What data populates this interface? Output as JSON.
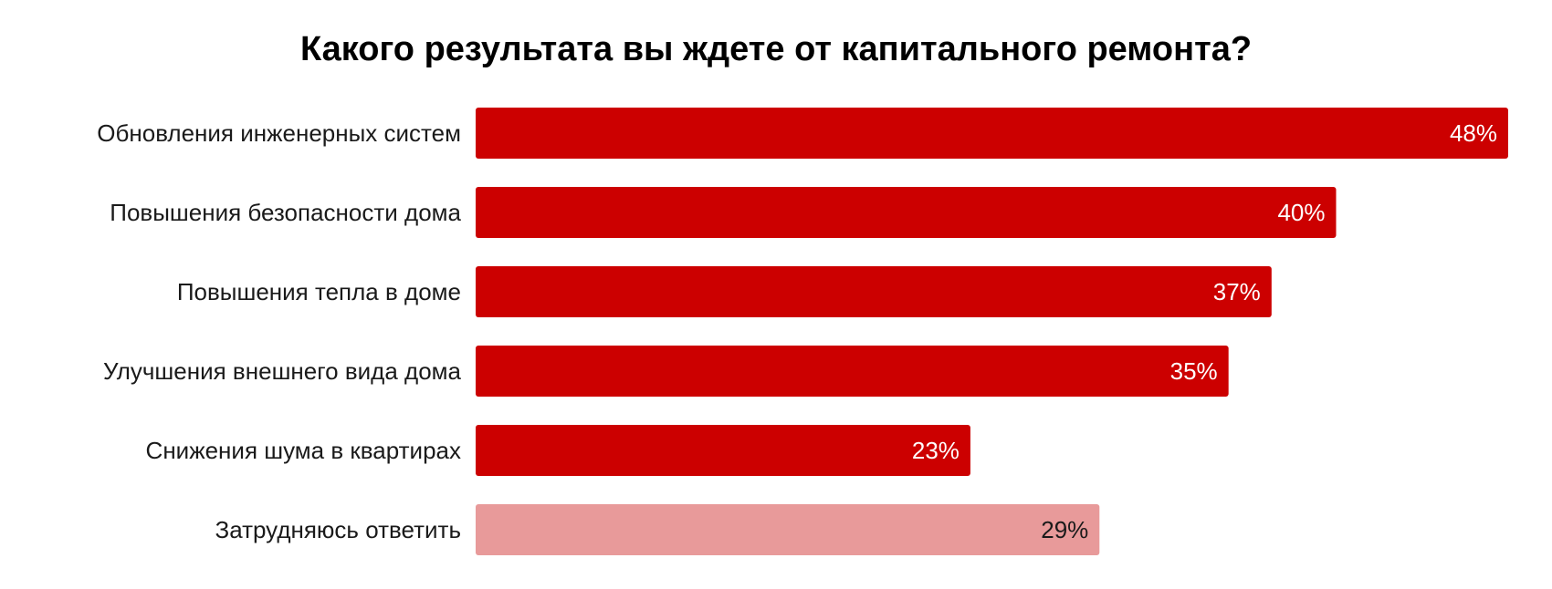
{
  "chart_data": {
    "type": "bar",
    "orientation": "horizontal",
    "title": "Какого результата вы ждете от капитального ремонта?",
    "categories": [
      "Обновления инженерных систем",
      "Повышения безопасности дома",
      "Повышения тепла в доме",
      "Улучшения внешнего вида дома",
      "Снижения шума в квартирах",
      "Затрудняюсь ответить"
    ],
    "values": [
      48,
      40,
      37,
      35,
      23,
      29
    ],
    "value_labels": [
      "48%",
      "40%",
      "37%",
      "35%",
      "23%",
      "29%"
    ],
    "unit": "%",
    "xlim": [
      0,
      48
    ],
    "grid": false,
    "legend": "none",
    "colors": {
      "bar": "#cc0000",
      "bar_secondary": "#e89a9a",
      "label_on_bar": "#ffffff",
      "label_on_secondary": "#1a1a1a",
      "category_text": "#1a1a1a",
      "title_text": "#000000"
    },
    "bar_styles": [
      "primary",
      "primary",
      "primary",
      "primary",
      "primary",
      "secondary"
    ]
  }
}
